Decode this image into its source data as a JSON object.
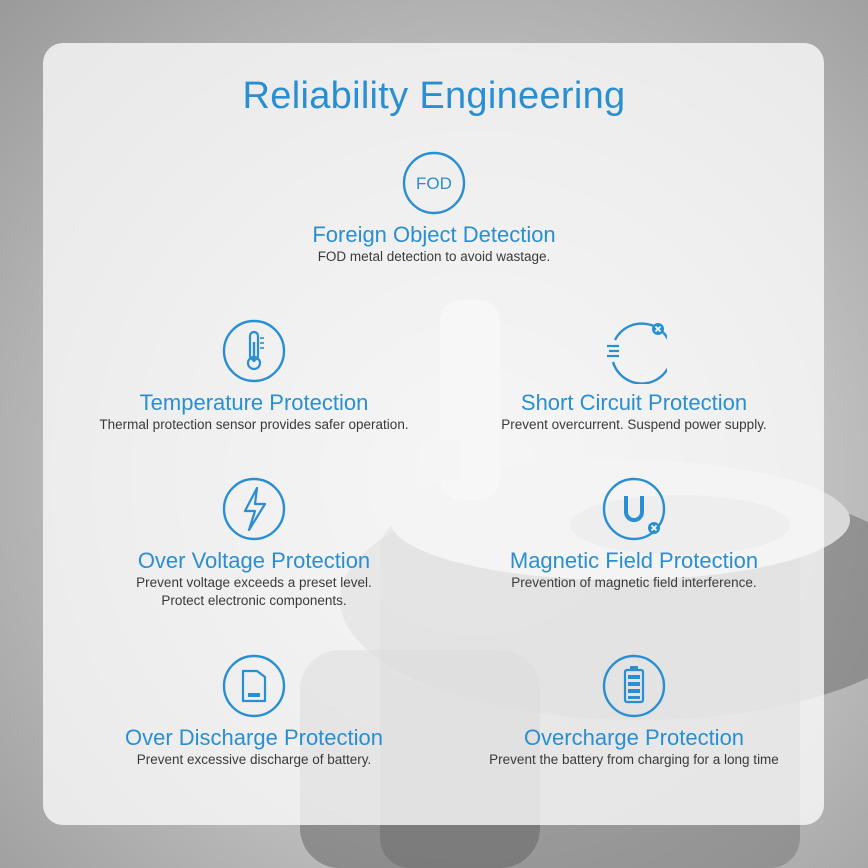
{
  "title": "Reliability Engineering",
  "colors": {
    "accent": "#2a8fd0",
    "text": "#3a3a3a"
  },
  "features": {
    "fod": {
      "icon_text": "FOD",
      "title": "Foreign Object Detection",
      "desc": "FOD metal detection to avoid  wastage."
    },
    "temperature": {
      "icon": "thermometer-icon",
      "title": "Temperature Protection",
      "desc": "Thermal protection sensor provides safer operation."
    },
    "short_circuit": {
      "icon": "short-circuit-icon",
      "title": "Short Circuit Protection",
      "desc": "Prevent overcurrent.  Suspend power supply."
    },
    "over_voltage": {
      "icon": "lightning-icon",
      "title": "Over Voltage Protection",
      "desc_line1": "Prevent voltage exceeds a preset level.",
      "desc_line2": "Protect electronic components."
    },
    "magnetic": {
      "icon": "magnet-icon",
      "title": "Magnetic Field  Protection",
      "desc": "Prevention of magnetic field interference."
    },
    "over_discharge": {
      "icon": "battery-low-icon",
      "title": "Over Discharge Protection",
      "desc": "Prevent excessive discharge of battery."
    },
    "overcharge": {
      "icon": "battery-full-icon",
      "title": "Overcharge Protection",
      "desc": "Prevent the battery from charging for a long time"
    }
  }
}
